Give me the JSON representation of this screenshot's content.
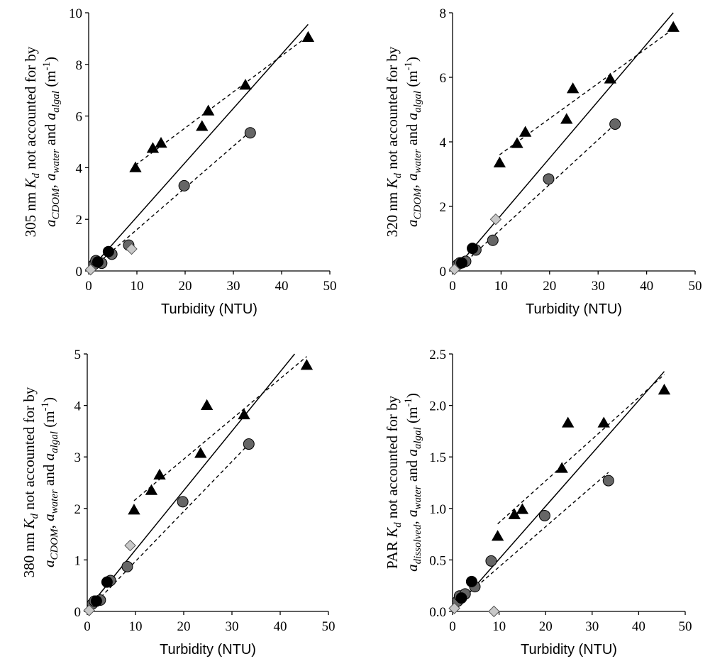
{
  "chart_data": [
    {
      "type": "scatter",
      "xlabel": "Turbidity (NTU)",
      "ylabel_lines": [
        [
          {
            "t": "305 nm "
          },
          {
            "t": "K",
            "i": true
          },
          {
            "t": "d",
            "i": true,
            "s": true
          },
          {
            "t": " not accounted for by"
          }
        ],
        [
          {
            "t": "a",
            "i": true
          },
          {
            "t": "CDOM",
            "i": true,
            "s": true
          },
          {
            "t": ", "
          },
          {
            "t": "a",
            "i": true
          },
          {
            "t": "water",
            "i": true,
            "s": true
          },
          {
            "t": " and "
          },
          {
            "t": "a",
            "i": true
          },
          {
            "t": "algal",
            "i": true,
            "s": true
          },
          {
            "t": " (m"
          },
          {
            "t": "-1",
            "p": true
          },
          {
            "t": ")"
          }
        ]
      ],
      "xlim": [
        0,
        50
      ],
      "ylim": [
        0,
        10
      ],
      "xticks": [
        "0",
        "10",
        "20",
        "30",
        "40",
        "50"
      ],
      "yticks": [
        "0",
        "2",
        "4",
        "6",
        "8",
        "10"
      ],
      "series": [
        {
          "marker": "triangle",
          "fill": "#000000",
          "x": [
            9.7,
            13.3,
            15.0,
            23.5,
            24.8,
            32.5,
            45.5
          ],
          "y": [
            4.0,
            4.75,
            4.95,
            5.6,
            6.2,
            7.2,
            9.05
          ]
        },
        {
          "marker": "circle",
          "fill": "#666666",
          "x": [
            1.1,
            1.5,
            2.7,
            4.8,
            8.3,
            19.8,
            33.5
          ],
          "y": [
            0.25,
            0.4,
            0.3,
            0.65,
            1.0,
            3.3,
            5.35
          ]
        },
        {
          "marker": "circle",
          "fill": "#000000",
          "x": [
            1.9,
            4.1
          ],
          "y": [
            0.35,
            0.75
          ]
        },
        {
          "marker": "diamond",
          "fill": "#c8c8c8",
          "x": [
            0.4,
            8.9
          ],
          "y": [
            0.05,
            0.85
          ]
        }
      ],
      "fits": [
        {
          "style": "solid",
          "x": [
            0.5,
            45.5
          ],
          "y": [
            0.1,
            9.55
          ]
        },
        {
          "style": "dashed",
          "x": [
            9.7,
            45.5
          ],
          "y": [
            4.1,
            9.1
          ]
        },
        {
          "style": "dashed",
          "x": [
            1.0,
            33.5
          ],
          "y": [
            0.15,
            5.4
          ]
        }
      ]
    },
    {
      "type": "scatter",
      "xlabel": "Turbidity (NTU)",
      "ylabel_lines": [
        [
          {
            "t": "320 nm "
          },
          {
            "t": "K",
            "i": true
          },
          {
            "t": "d",
            "i": true,
            "s": true
          },
          {
            "t": " not accounted for by"
          }
        ],
        [
          {
            "t": "a",
            "i": true
          },
          {
            "t": "CDOM",
            "i": true,
            "s": true
          },
          {
            "t": ", "
          },
          {
            "t": "a",
            "i": true
          },
          {
            "t": "water",
            "i": true,
            "s": true
          },
          {
            "t": " and "
          },
          {
            "t": "a",
            "i": true
          },
          {
            "t": "algal",
            "i": true,
            "s": true
          },
          {
            "t": " (m"
          },
          {
            "t": "-1",
            "p": true
          },
          {
            "t": ")"
          }
        ]
      ],
      "xlim": [
        0,
        50
      ],
      "ylim": [
        0,
        8
      ],
      "xticks": [
        "0",
        "10",
        "20",
        "30",
        "40",
        "50"
      ],
      "yticks": [
        "0",
        "2",
        "4",
        "6",
        "8"
      ],
      "series": [
        {
          "marker": "triangle",
          "fill": "#000000",
          "x": [
            9.7,
            13.3,
            15.0,
            23.5,
            24.8,
            32.5,
            45.5
          ],
          "y": [
            3.35,
            3.95,
            4.3,
            4.7,
            5.65,
            5.95,
            7.55
          ]
        },
        {
          "marker": "circle",
          "fill": "#666666",
          "x": [
            1.1,
            1.5,
            2.7,
            4.8,
            8.3,
            19.8,
            33.5
          ],
          "y": [
            0.2,
            0.25,
            0.3,
            0.65,
            0.95,
            2.85,
            4.55
          ]
        },
        {
          "marker": "circle",
          "fill": "#000000",
          "x": [
            1.9,
            4.1
          ],
          "y": [
            0.25,
            0.7
          ]
        },
        {
          "marker": "diamond",
          "fill": "#c8c8c8",
          "x": [
            0.4,
            8.9
          ],
          "y": [
            0.05,
            1.6
          ]
        }
      ],
      "fits": [
        {
          "style": "solid",
          "x": [
            0.5,
            45.5
          ],
          "y": [
            0.05,
            8.0
          ]
        },
        {
          "style": "dashed",
          "x": [
            9.7,
            45.5
          ],
          "y": [
            3.6,
            7.5
          ]
        },
        {
          "style": "dashed",
          "x": [
            1.0,
            33.5
          ],
          "y": [
            0.05,
            4.55
          ]
        }
      ]
    },
    {
      "type": "scatter",
      "xlabel": "Turbidity (NTU)",
      "ylabel_lines": [
        [
          {
            "t": "380 nm "
          },
          {
            "t": "K",
            "i": true
          },
          {
            "t": "d",
            "i": true,
            "s": true
          },
          {
            "t": " not accounted for by"
          }
        ],
        [
          {
            "t": "a",
            "i": true
          },
          {
            "t": "CDOM",
            "i": true,
            "s": true
          },
          {
            "t": ", "
          },
          {
            "t": "a",
            "i": true
          },
          {
            "t": "water",
            "i": true,
            "s": true
          },
          {
            "t": " and "
          },
          {
            "t": "a",
            "i": true
          },
          {
            "t": "algal",
            "i": true,
            "s": true
          },
          {
            "t": " (m"
          },
          {
            "t": "-1",
            "p": true
          },
          {
            "t": ")"
          }
        ]
      ],
      "xlim": [
        0,
        50
      ],
      "ylim": [
        0,
        5
      ],
      "xticks": [
        "0",
        "10",
        "20",
        "30",
        "40",
        "50"
      ],
      "yticks": [
        "0",
        "1",
        "2",
        "3",
        "4",
        "5"
      ],
      "series": [
        {
          "marker": "triangle",
          "fill": "#000000",
          "x": [
            9.7,
            13.3,
            15.0,
            23.5,
            24.8,
            32.5,
            45.5
          ],
          "y": [
            1.97,
            2.35,
            2.65,
            3.07,
            4.0,
            3.82,
            4.78
          ]
        },
        {
          "marker": "circle",
          "fill": "#666666",
          "x": [
            1.1,
            1.5,
            2.7,
            4.8,
            8.3,
            19.8,
            33.5
          ],
          "y": [
            0.15,
            0.2,
            0.22,
            0.6,
            0.87,
            2.13,
            3.25
          ]
        },
        {
          "marker": "circle",
          "fill": "#000000",
          "x": [
            1.9,
            4.1
          ],
          "y": [
            0.2,
            0.57
          ]
        },
        {
          "marker": "diamond",
          "fill": "#c8c8c8",
          "x": [
            0.4,
            8.9
          ],
          "y": [
            0.02,
            1.28
          ]
        }
      ],
      "fits": [
        {
          "style": "solid",
          "x": [
            0.5,
            43.0
          ],
          "y": [
            0.1,
            5.0
          ]
        },
        {
          "style": "dashed",
          "x": [
            9.7,
            45.5
          ],
          "y": [
            2.15,
            4.95
          ]
        },
        {
          "style": "dashed",
          "x": [
            1.0,
            33.5
          ],
          "y": [
            0.1,
            3.25
          ]
        }
      ]
    },
    {
      "type": "scatter",
      "xlabel": "Turbidity (NTU)",
      "ylabel_lines": [
        [
          {
            "t": "PAR "
          },
          {
            "t": "K",
            "i": true
          },
          {
            "t": "d",
            "i": true,
            "s": true
          },
          {
            "t": " not accounted for by"
          }
        ],
        [
          {
            "t": "a",
            "i": true
          },
          {
            "t": "dissolved",
            "i": true,
            "s": true
          },
          {
            "t": ", "
          },
          {
            "t": "a",
            "i": true
          },
          {
            "t": "water",
            "i": true,
            "s": true
          },
          {
            "t": " and "
          },
          {
            "t": "a",
            "i": true
          },
          {
            "t": "algal",
            "i": true,
            "s": true
          },
          {
            "t": " (m"
          },
          {
            "t": "-1",
            "p": true
          },
          {
            "t": ")"
          }
        ]
      ],
      "xlim": [
        0,
        50
      ],
      "ylim": [
        0,
        2.5
      ],
      "xticks": [
        "0",
        "10",
        "20",
        "30",
        "40",
        "50"
      ],
      "yticks": [
        "0.0",
        "0.5",
        "1.0",
        "1.5",
        "2.0",
        "2.5"
      ],
      "series": [
        {
          "marker": "triangle",
          "fill": "#000000",
          "x": [
            9.7,
            13.3,
            15.0,
            23.5,
            24.8,
            32.5,
            45.5
          ],
          "y": [
            0.73,
            0.94,
            0.99,
            1.39,
            1.83,
            1.83,
            2.15
          ]
        },
        {
          "marker": "circle",
          "fill": "#666666",
          "x": [
            1.1,
            1.5,
            2.7,
            4.8,
            8.3,
            19.8,
            33.5
          ],
          "y": [
            0.1,
            0.15,
            0.17,
            0.24,
            0.49,
            0.93,
            1.27
          ]
        },
        {
          "marker": "circle",
          "fill": "#000000",
          "x": [
            1.9,
            4.1
          ],
          "y": [
            0.13,
            0.29
          ]
        },
        {
          "marker": "diamond",
          "fill": "#c8c8c8",
          "x": [
            0.4,
            8.9
          ],
          "y": [
            0.03,
            0.0
          ]
        }
      ],
      "fits": [
        {
          "style": "solid",
          "x": [
            0.5,
            45.5
          ],
          "y": [
            0.02,
            2.33
          ]
        },
        {
          "style": "dashed",
          "x": [
            9.7,
            45.5
          ],
          "y": [
            0.85,
            2.3
          ]
        },
        {
          "style": "dashed",
          "x": [
            1.0,
            33.5
          ],
          "y": [
            0.08,
            1.35
          ]
        }
      ]
    }
  ]
}
